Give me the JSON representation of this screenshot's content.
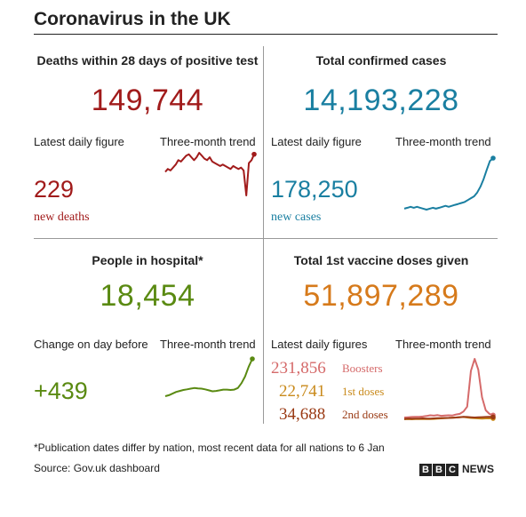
{
  "title": "Coronavirus in the UK",
  "colors": {
    "deaths": "#a11b1b",
    "cases": "#1a7fa1",
    "hospital": "#5a8a12",
    "vaccine": "#d67a1b",
    "boosters": "#d56a6a",
    "first_doses": "#c98a1b",
    "second_doses": "#9a3a14"
  },
  "panels": {
    "deaths": {
      "heading": "Deaths within 28 days of positive test",
      "total": "149,744",
      "left_label": "Latest daily figure",
      "trend_label": "Three-month trend",
      "daily_value": "229",
      "daily_unit": "new deaths"
    },
    "cases": {
      "heading": "Total confirmed cases",
      "total": "14,193,228",
      "left_label": "Latest daily figure",
      "trend_label": "Three-month trend",
      "daily_value": "178,250",
      "daily_unit": "new cases"
    },
    "hospital": {
      "heading": "People in hospital*",
      "total": "18,454",
      "left_label": "Change on day before",
      "trend_label": "Three-month trend",
      "daily_value": "+439"
    },
    "vaccine": {
      "heading": "Total 1st vaccine doses given",
      "total": "51,897,289",
      "left_label": "Latest daily figures",
      "trend_label": "Three-month trend",
      "doses": [
        {
          "value": "231,856",
          "label": "Boosters"
        },
        {
          "value": "22,741",
          "label": "1st doses"
        },
        {
          "value": "34,688",
          "label": "2nd doses"
        }
      ]
    }
  },
  "footnote": "*Publication dates differ by nation, most recent data for all nations to 6 Jan",
  "source": "Source: Gov.uk dashboard",
  "logo": {
    "letters": [
      "B",
      "B",
      "C"
    ],
    "word": "NEWS"
  },
  "chart_data": [
    {
      "type": "line",
      "name": "deaths-trend",
      "series": [
        {
          "values": [
            36,
            38,
            37,
            39,
            41,
            44,
            43,
            45,
            47,
            48,
            46,
            44,
            46,
            49,
            47,
            45,
            44,
            46,
            43,
            42,
            41,
            40,
            41,
            40,
            39,
            38,
            40,
            39,
            38,
            39,
            37,
            20,
            42,
            44,
            48
          ]
        }
      ]
    },
    {
      "type": "line",
      "name": "cases-trend",
      "series": [
        {
          "values": [
            35,
            36,
            37,
            36,
            37,
            36,
            35,
            34,
            35,
            36,
            35,
            36,
            37,
            38,
            37,
            38,
            39,
            40,
            41,
            42,
            44,
            46,
            48,
            52,
            58,
            66,
            76,
            85,
            88
          ]
        }
      ]
    },
    {
      "type": "line",
      "name": "hospital-trend",
      "series": [
        {
          "values": [
            7.0,
            7.3,
            7.8,
            8.3,
            8.6,
            8.9,
            9.1,
            9.3,
            9.5,
            9.4,
            9.3,
            9.1,
            8.8,
            8.5,
            8.6,
            8.8,
            9.0,
            9.0,
            8.9,
            9.0,
            9.5,
            11,
            13,
            16,
            18.4
          ]
        }
      ]
    },
    {
      "type": "line",
      "name": "vaccine-trend",
      "series": [
        {
          "values": [
            30,
            32,
            34,
            36,
            35,
            38,
            42,
            48,
            45,
            50,
            44,
            46,
            48,
            47,
            55,
            60,
            80,
            120,
            420,
            520,
            430,
            200,
            90,
            60,
            50
          ]
        },
        {
          "values": [
            15,
            16,
            15,
            17,
            16,
            16,
            17,
            16,
            18,
            20,
            22,
            24,
            26,
            28,
            30,
            32,
            34,
            30,
            26,
            24,
            22,
            21,
            22,
            23,
            22
          ]
        },
        {
          "values": [
            18,
            20,
            19,
            21,
            20,
            22,
            21,
            20,
            22,
            24,
            25,
            26,
            27,
            28,
            30,
            33,
            36,
            34,
            32,
            30,
            31,
            33,
            34,
            35,
            34
          ]
        }
      ]
    }
  ]
}
